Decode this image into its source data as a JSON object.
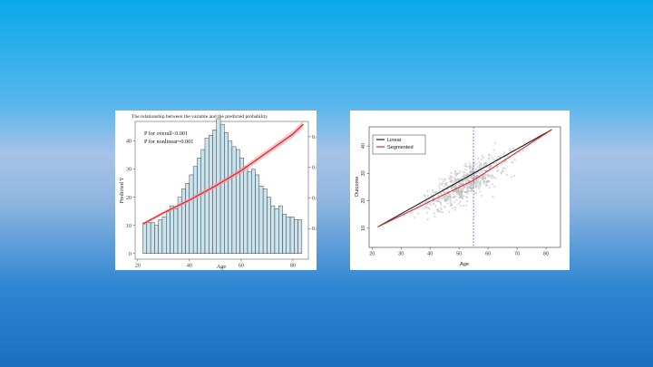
{
  "chart_data": [
    {
      "type": "bar",
      "title": "The relationship between the variable and the predicted probability",
      "xlabel": "Age",
      "ylabel": "Predicted Y",
      "y2label": "density",
      "xlim": [
        19,
        86
      ],
      "ylim": [
        -2,
        47
      ],
      "y2lim": [
        0,
        0.045
      ],
      "x_ticks": [
        20,
        40,
        60,
        80
      ],
      "y_ticks": [
        0,
        10,
        20,
        30,
        40
      ],
      "y2_ticks": [
        0.01,
        0.02,
        0.03,
        0.04
      ],
      "annotations": [
        "P for overall<0.001",
        "P for nonlinear=0.001"
      ],
      "histogram": {
        "bin_start": 22,
        "bin_width": 1.5,
        "counts": [
          11,
          11,
          11,
          10,
          12,
          13,
          15,
          17,
          16,
          20,
          23,
          25,
          28,
          31,
          34,
          37,
          41,
          42,
          44,
          48,
          46,
          43,
          40,
          38,
          37,
          34,
          31,
          29,
          30,
          28,
          24,
          23,
          20,
          17,
          16,
          17,
          14,
          13,
          13,
          12,
          12
        ]
      },
      "series": [
        {
          "name": "fit",
          "x": [
            22,
            30,
            40,
            50,
            60,
            70,
            80,
            84
          ],
          "y": [
            10.5,
            14.5,
            19,
            24,
            29.5,
            36,
            42.5,
            46
          ]
        }
      ],
      "colors": {
        "bars": "#c9e3ef",
        "bar_edge": "#1a1a1a",
        "line": "#e8262c",
        "band": "#f4a3a6"
      }
    },
    {
      "type": "scatter",
      "xlabel": "Age",
      "ylabel": "Outcome",
      "xlim": [
        19,
        85
      ],
      "ylim": [
        3,
        47
      ],
      "x_ticks": [
        20,
        30,
        40,
        50,
        60,
        70,
        80
      ],
      "y_ticks": [
        10,
        20,
        30,
        40
      ],
      "breakpoint": 55,
      "legend": [
        "Linear",
        "Segmented"
      ],
      "legend_position": "top-left",
      "series": [
        {
          "name": "Linear",
          "x": [
            22,
            82
          ],
          "y": [
            10.5,
            46
          ],
          "color": "#1a1a1a"
        },
        {
          "name": "Segmented",
          "x": [
            22,
            55,
            82
          ],
          "y": [
            10.5,
            27.5,
            46
          ],
          "color": "#e8262c"
        }
      ],
      "colors": {
        "points": "#b9b9b9",
        "breakpoint_line": "#5a5ae0"
      }
    }
  ]
}
